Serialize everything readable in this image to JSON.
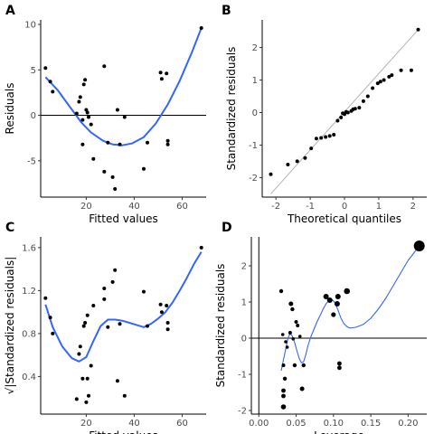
{
  "colors": {
    "points": "#000000",
    "smooth": "#3366ff",
    "qqline": "#b3b3b3",
    "ref": "#000000"
  },
  "chart_data": [
    {
      "panel": "A",
      "type": "scatter",
      "xlabel": "Fitted values",
      "ylabel": "Residuals",
      "xlim": [
        1,
        70
      ],
      "ylim": [
        -9,
        10.5
      ],
      "xticks": [
        20,
        40,
        60
      ],
      "yticks": [
        -5,
        0,
        5,
        10
      ],
      "refline": {
        "axis": "y",
        "value": 0
      },
      "points": [
        [
          3,
          5.2
        ],
        [
          5,
          3.7
        ],
        [
          6,
          2.6
        ],
        [
          16,
          0.2
        ],
        [
          17,
          1.5
        ],
        [
          17.5,
          2
        ],
        [
          18.5,
          -0.5
        ],
        [
          18.5,
          -3.2
        ],
        [
          19,
          3.4
        ],
        [
          19.5,
          3.9
        ],
        [
          20,
          0.6
        ],
        [
          20.5,
          0.3
        ],
        [
          21,
          -0.2
        ],
        [
          22,
          -1
        ],
        [
          23,
          -4.8
        ],
        [
          27.5,
          5.4
        ],
        [
          27.5,
          -6.2
        ],
        [
          29,
          -3
        ],
        [
          31,
          -6.8
        ],
        [
          32,
          -8.1
        ],
        [
          33,
          0.6
        ],
        [
          34,
          -3.2
        ],
        [
          36,
          -0.2
        ],
        [
          44,
          -5.9
        ],
        [
          45.5,
          -3
        ],
        [
          51,
          4.7
        ],
        [
          51.5,
          4
        ],
        [
          53.5,
          4.6
        ],
        [
          54,
          -2.8
        ],
        [
          54,
          -3.2
        ],
        [
          68,
          9.6
        ]
      ],
      "smooth": [
        [
          3,
          4.2
        ],
        [
          8,
          2.8
        ],
        [
          13,
          1.0
        ],
        [
          18,
          -0.8
        ],
        [
          22,
          -1.9
        ],
        [
          27,
          -2.8
        ],
        [
          31,
          -3.2
        ],
        [
          35,
          -3.3
        ],
        [
          39,
          -3.1
        ],
        [
          44,
          -2.4
        ],
        [
          49,
          -0.9
        ],
        [
          54,
          1.2
        ],
        [
          59,
          3.8
        ],
        [
          64,
          6.9
        ],
        [
          68,
          9.6
        ]
      ]
    },
    {
      "panel": "B",
      "type": "scatter",
      "xlabel": "Theoretical quantiles",
      "ylabel": "Standardized residuals",
      "xlim": [
        -2.4,
        2.4
      ],
      "ylim": [
        -2.6,
        2.85
      ],
      "xticks": [
        -2,
        -1,
        0,
        1,
        2
      ],
      "yticks": [
        -2,
        -1,
        0,
        1,
        2
      ],
      "qqline": [
        [
          -2.15,
          -2.5
        ],
        [
          2.15,
          2.55
        ]
      ],
      "points": [
        [
          -2.15,
          -1.9
        ],
        [
          -1.65,
          -1.6
        ],
        [
          -1.38,
          -1.5
        ],
        [
          -1.15,
          -1.4
        ],
        [
          -0.97,
          -1.1
        ],
        [
          -0.82,
          -0.8
        ],
        [
          -0.68,
          -0.78
        ],
        [
          -0.55,
          -0.75
        ],
        [
          -0.43,
          -0.72
        ],
        [
          -0.31,
          -0.68
        ],
        [
          -0.2,
          -0.25
        ],
        [
          -0.1,
          -0.15
        ],
        [
          0.0,
          -0.05
        ],
        [
          0.1,
          0.0
        ],
        [
          0.2,
          0.05
        ],
        [
          0.31,
          0.12
        ],
        [
          0.43,
          0.15
        ],
        [
          0.55,
          0.35
        ],
        [
          0.68,
          0.5
        ],
        [
          0.82,
          0.75
        ],
        [
          0.97,
          0.9
        ],
        [
          1.15,
          1.0
        ],
        [
          1.38,
          1.15
        ],
        [
          1.65,
          1.3
        ],
        [
          2.15,
          2.55
        ],
        [
          -0.05,
          -0.02
        ],
        [
          0.05,
          0.02
        ],
        [
          0.25,
          0.1
        ],
        [
          1.05,
          0.95
        ],
        [
          1.3,
          1.1
        ],
        [
          1.95,
          1.3
        ]
      ]
    },
    {
      "panel": "C",
      "type": "scatter",
      "xlabel": "Fitted values",
      "ylabel": "√|Standardized residuals|",
      "xlim": [
        1,
        70
      ],
      "ylim": [
        0.05,
        1.7
      ],
      "xticks": [
        20,
        40,
        60
      ],
      "yticks": [
        0.4,
        0.8,
        1.2,
        1.6
      ],
      "yticklabels": [
        "0.4",
        "0.8",
        "1.2",
        "1.6"
      ],
      "points": [
        [
          3,
          1.13
        ],
        [
          5,
          0.95
        ],
        [
          6,
          0.8
        ],
        [
          16,
          0.19
        ],
        [
          17,
          0.61
        ],
        [
          17.5,
          0.68
        ],
        [
          18.5,
          0.38
        ],
        [
          19,
          0.87
        ],
        [
          19.5,
          0.9
        ],
        [
          20,
          0.16
        ],
        [
          20.5,
          0.97
        ],
        [
          20.5,
          0.38
        ],
        [
          21,
          0.22
        ],
        [
          22,
          0.5
        ],
        [
          23,
          1.06
        ],
        [
          27.5,
          1.12
        ],
        [
          27.5,
          1.22
        ],
        [
          29,
          0.86
        ],
        [
          31,
          1.28
        ],
        [
          32,
          1.39
        ],
        [
          33,
          0.36
        ],
        [
          34,
          0.89
        ],
        [
          36,
          0.22
        ],
        [
          44,
          1.19
        ],
        [
          45.5,
          0.87
        ],
        [
          51,
          1.07
        ],
        [
          51.5,
          1.0
        ],
        [
          53.5,
          1.06
        ],
        [
          54,
          0.9
        ],
        [
          54,
          0.84
        ],
        [
          68,
          1.6
        ]
      ],
      "smooth": [
        [
          3,
          1.07
        ],
        [
          6,
          0.86
        ],
        [
          10,
          0.68
        ],
        [
          14,
          0.57
        ],
        [
          17,
          0.54
        ],
        [
          20,
          0.58
        ],
        [
          23,
          0.73
        ],
        [
          26,
          0.87
        ],
        [
          29,
          0.93
        ],
        [
          32,
          0.93
        ],
        [
          35,
          0.92
        ],
        [
          38,
          0.9
        ],
        [
          41,
          0.88
        ],
        [
          44,
          0.86
        ],
        [
          47,
          0.89
        ],
        [
          50,
          0.94
        ],
        [
          53,
          1.0
        ],
        [
          56,
          1.09
        ],
        [
          59,
          1.2
        ],
        [
          62,
          1.32
        ],
        [
          65,
          1.45
        ],
        [
          68,
          1.56
        ]
      ]
    },
    {
      "panel": "D",
      "type": "scatter",
      "xlabel": "Leverage",
      "ylabel": "Standardized residuals",
      "xlim": [
        -0.01,
        0.225
      ],
      "ylim": [
        -2.1,
        2.8
      ],
      "xticks": [
        0.0,
        0.05,
        0.1,
        0.15,
        0.2
      ],
      "xticklabels": [
        "0.00",
        "0.05",
        "0.10",
        "0.15",
        "0.20"
      ],
      "yticks": [
        -2,
        -1,
        0,
        1,
        2
      ],
      "refline": {
        "axis": "both",
        "x": 0,
        "y": 0
      },
      "points": [
        [
          0.03,
          1.3,
          2.2
        ],
        [
          0.032,
          0.1,
          1.8
        ],
        [
          0.033,
          -0.75,
          2
        ],
        [
          0.033,
          -1.45,
          2.4
        ],
        [
          0.033,
          -1.6,
          2.4
        ],
        [
          0.033,
          -1.9,
          2.8
        ],
        [
          0.035,
          -1.12,
          2.2
        ],
        [
          0.036,
          -0.1,
          1.8
        ],
        [
          0.038,
          -0.25,
          1.8
        ],
        [
          0.042,
          0.15,
          2
        ],
        [
          0.043,
          0.95,
          2.5
        ],
        [
          0.045,
          0.8,
          2.2
        ],
        [
          0.046,
          -0.02,
          1.8
        ],
        [
          0.048,
          -0.75,
          2.2
        ],
        [
          0.05,
          0.45,
          2
        ],
        [
          0.052,
          0.35,
          2
        ],
        [
          0.055,
          0.05,
          1.8
        ],
        [
          0.058,
          -1.4,
          2.5
        ],
        [
          0.06,
          -0.75,
          2.2
        ],
        [
          0.09,
          1.15,
          3
        ],
        [
          0.095,
          1.05,
          3
        ],
        [
          0.1,
          0.65,
          2.6
        ],
        [
          0.105,
          0.95,
          3
        ],
        [
          0.106,
          1.15,
          3
        ],
        [
          0.108,
          -0.7,
          2.4
        ],
        [
          0.108,
          -0.82,
          2.4
        ],
        [
          0.118,
          1.3,
          3.3
        ],
        [
          0.215,
          2.55,
          6
        ]
      ],
      "smooth": [
        [
          0.03,
          -0.9
        ],
        [
          0.033,
          -0.6
        ],
        [
          0.036,
          -0.3
        ],
        [
          0.039,
          0.0
        ],
        [
          0.042,
          0.13
        ],
        [
          0.045,
          0.05
        ],
        [
          0.048,
          -0.12
        ],
        [
          0.051,
          -0.35
        ],
        [
          0.054,
          -0.55
        ],
        [
          0.057,
          -0.68
        ],
        [
          0.06,
          -0.65
        ],
        [
          0.063,
          -0.45
        ],
        [
          0.066,
          -0.2
        ],
        [
          0.07,
          0.05
        ],
        [
          0.074,
          0.25
        ],
        [
          0.078,
          0.45
        ],
        [
          0.082,
          0.62
        ],
        [
          0.086,
          0.8
        ],
        [
          0.09,
          0.95
        ],
        [
          0.094,
          1.05
        ],
        [
          0.098,
          1.07
        ],
        [
          0.102,
          0.98
        ],
        [
          0.106,
          0.78
        ],
        [
          0.11,
          0.55
        ],
        [
          0.114,
          0.4
        ],
        [
          0.118,
          0.32
        ],
        [
          0.122,
          0.28
        ],
        [
          0.13,
          0.3
        ],
        [
          0.14,
          0.38
        ],
        [
          0.15,
          0.55
        ],
        [
          0.16,
          0.8
        ],
        [
          0.17,
          1.1
        ],
        [
          0.18,
          1.45
        ],
        [
          0.19,
          1.8
        ],
        [
          0.2,
          2.15
        ],
        [
          0.215,
          2.55
        ]
      ]
    }
  ]
}
